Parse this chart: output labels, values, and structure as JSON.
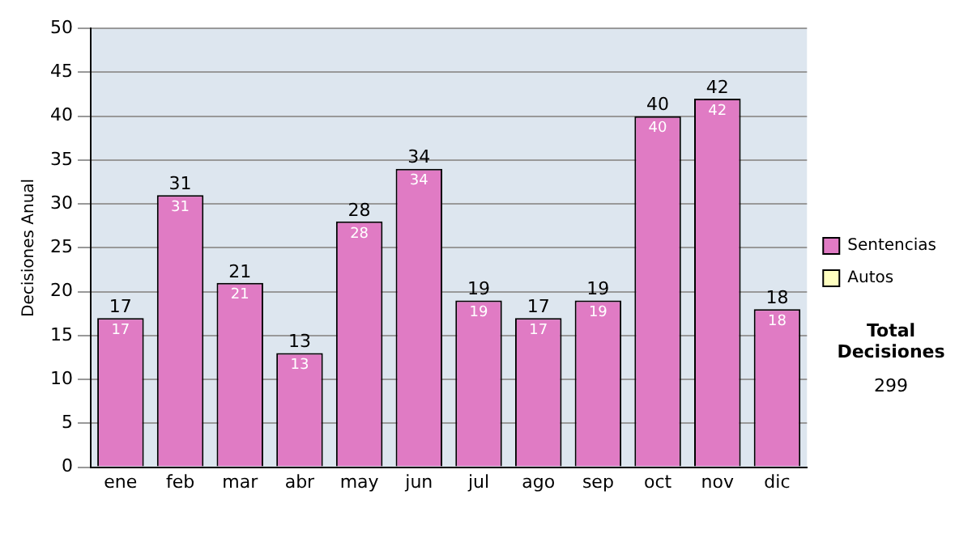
{
  "chart_data": {
    "type": "bar",
    "ylabel": "Decisiones Anual",
    "categories": [
      "ene",
      "feb",
      "mar",
      "abr",
      "may",
      "jun",
      "jul",
      "ago",
      "sep",
      "oct",
      "nov",
      "dic"
    ],
    "series": [
      {
        "name": "Sentencias",
        "color": "#e07bc4",
        "values": [
          17,
          31,
          21,
          13,
          28,
          34,
          19,
          17,
          19,
          40,
          42,
          18
        ],
        "value_labels": [
          "17",
          "31",
          "21",
          "13",
          "28",
          "34",
          "19",
          "17",
          "19",
          "40",
          "42",
          "18"
        ]
      },
      {
        "name": "Autos",
        "color": "#ffffc0",
        "values": [
          0,
          0,
          0,
          0,
          0,
          0,
          0,
          0,
          0,
          0,
          0,
          0
        ],
        "value_labels": [
          null,
          null,
          null,
          null,
          null,
          null,
          null,
          null,
          null,
          null,
          null,
          null
        ]
      }
    ],
    "stacked": true,
    "totals": [
      "17",
      "31",
      "21",
      "13",
      "28",
      "34",
      "19",
      "17",
      "19",
      "40",
      "42",
      "18"
    ],
    "ylim": [
      0,
      50
    ],
    "yticks": [
      0,
      5,
      10,
      15,
      20,
      25,
      30,
      35,
      40,
      45,
      50
    ],
    "grid": "y",
    "legend": "right",
    "annotations": [
      "Total Decisiones",
      "299"
    ]
  }
}
